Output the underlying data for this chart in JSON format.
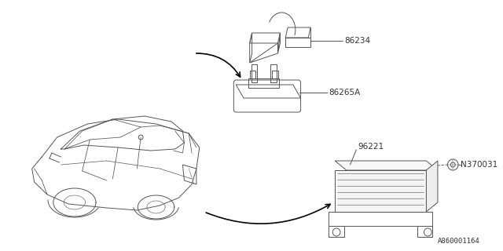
{
  "background_color": "#ffffff",
  "image_id": "A860001164",
  "line_color": "#555555",
  "text_color": "#333333",
  "font_size": 7.5,
  "image_id_fontsize": 6.5,
  "lw": 0.7,
  "label_86234": "86234",
  "label_86265A": "86265A",
  "label_96221": "96221",
  "label_N370031": "N370031"
}
